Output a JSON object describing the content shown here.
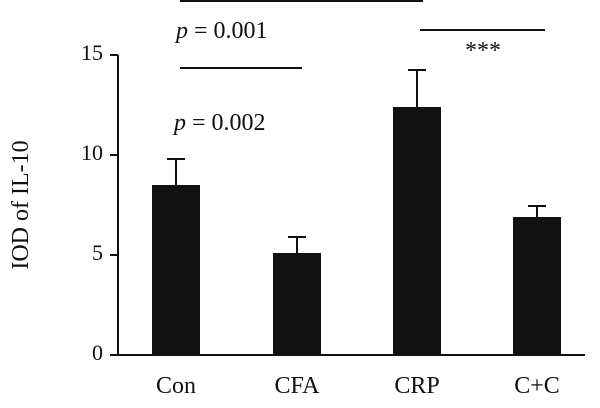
{
  "chart_data": {
    "type": "bar",
    "title": "",
    "xlabel": "",
    "ylabel": "IOD of IL-10",
    "categories": [
      "Con",
      "CFA",
      "CRP",
      "C+C"
    ],
    "values": [
      8.5,
      5.1,
      12.4,
      6.9
    ],
    "errors": [
      1.3,
      0.8,
      1.85,
      0.55
    ],
    "ylim": [
      0,
      15
    ],
    "yticks": [
      "0",
      "5",
      "10",
      "15"
    ],
    "bar_color": "#111111",
    "grid": false,
    "annotations": {
      "p1_label": "p",
      "p1_value": " = 0.001",
      "p2_label": "p",
      "p2_value": " = 0.002",
      "stars": "***"
    }
  }
}
